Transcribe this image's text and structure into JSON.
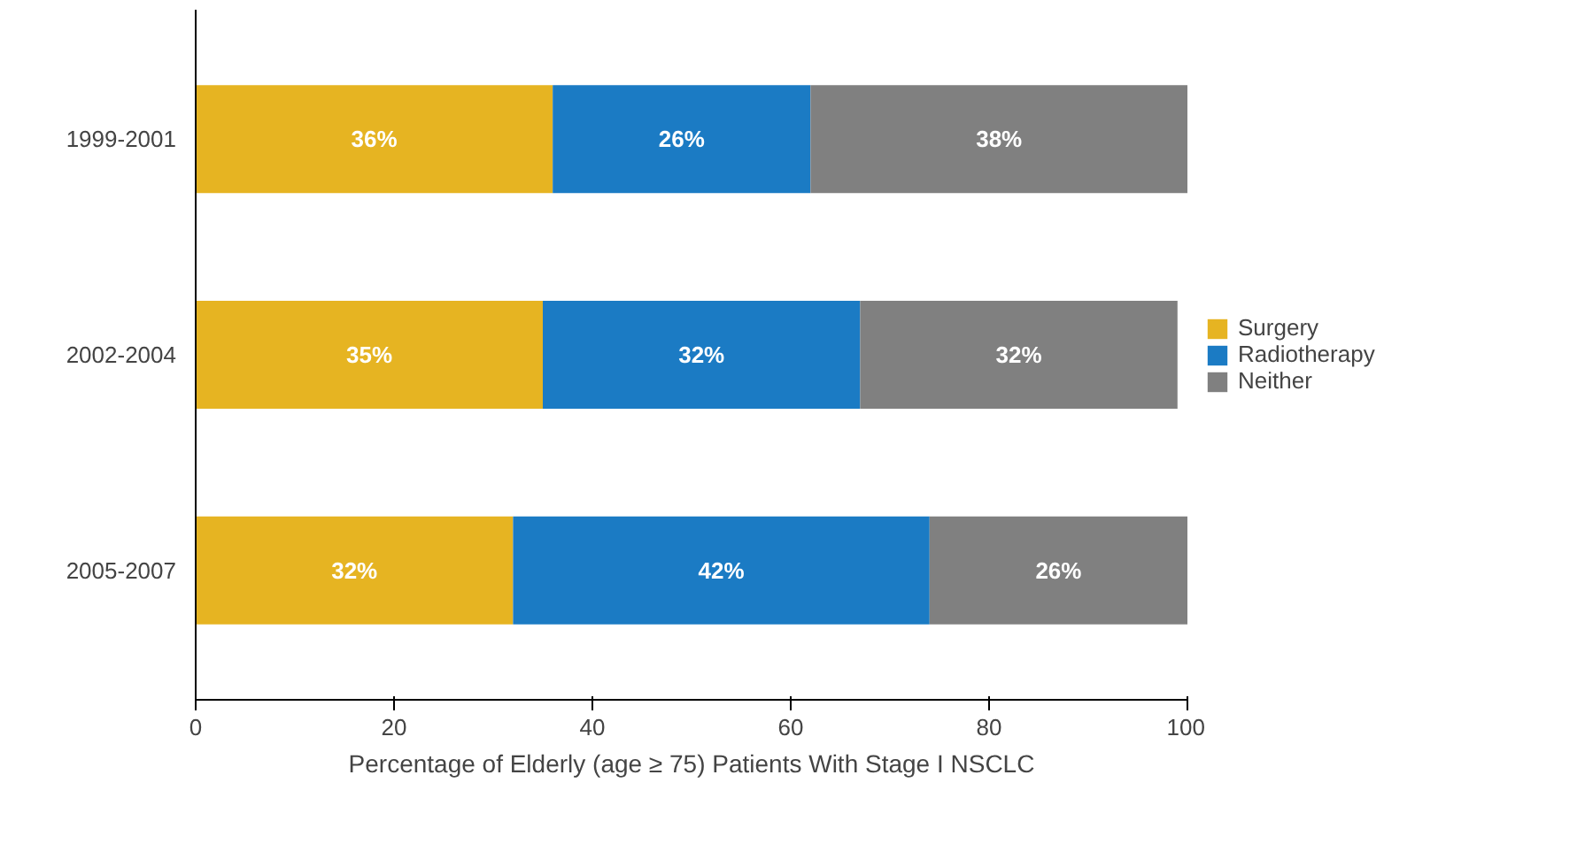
{
  "chart_data": {
    "type": "bar",
    "orientation": "horizontal",
    "stacked": true,
    "categories": [
      "1999-2001",
      "2002-2004",
      "2005-2007"
    ],
    "series": [
      {
        "name": "Surgery",
        "color": "#e6b422",
        "values": [
          36,
          35,
          32
        ],
        "value_labels": [
          "36%",
          "35%",
          "32%"
        ]
      },
      {
        "name": "Radiotherapy",
        "color": "#1b7bc4",
        "values": [
          26,
          32,
          42
        ],
        "value_labels": [
          "26%",
          "32%",
          "42%"
        ]
      },
      {
        "name": "Neither",
        "color": "#808080",
        "values": [
          38,
          32,
          26
        ],
        "value_labels": [
          "38%",
          "32%",
          "26%"
        ]
      }
    ],
    "xlim": [
      0,
      100
    ],
    "xticks": [
      0,
      20,
      40,
      60,
      80,
      100
    ],
    "xlabel": "Percentage of Elderly (age ≥ 75) Patients With Stage I NSCLC",
    "grid": false,
    "legend": "right"
  }
}
